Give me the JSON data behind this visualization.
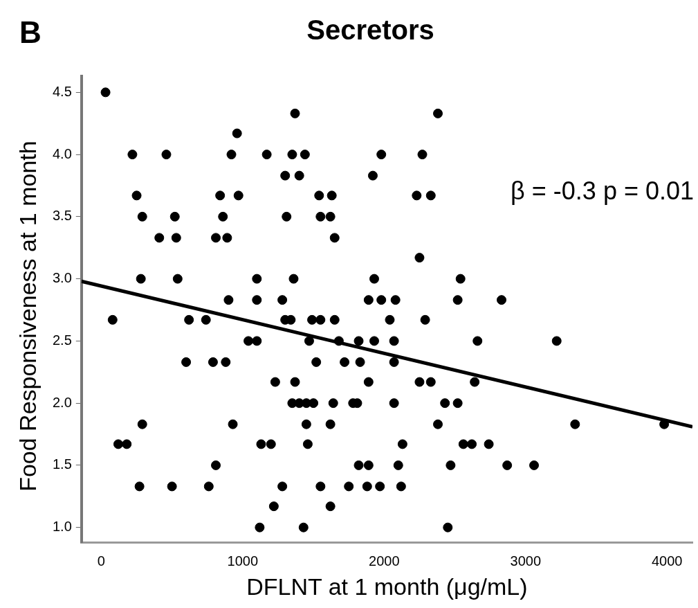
{
  "chart_data": {
    "type": "scatter",
    "title": "Secretors",
    "xlabel": "DFLNT at 1 month (μg/mL)",
    "ylabel": "Food Responsiveness at 1 month",
    "annotations": [
      "B",
      "β = -0.3 p = 0.01"
    ],
    "xlim": [
      -140,
      4180
    ],
    "xticks": [
      0,
      1000,
      2000,
      3000,
      4000
    ],
    "ylim": [
      0.88,
      4.63
    ],
    "yticks": [
      {
        "value": 1,
        "label": "1.0"
      },
      1.5,
      {
        "value": 2,
        "label": "2.0"
      },
      2.5,
      {
        "value": 3,
        "label": "3.0"
      },
      3.5,
      {
        "value": 4,
        "label": "4.0"
      },
      4.5
    ],
    "grid": false,
    "legend": false,
    "series": [
      {
        "type": "scatter",
        "marker": "circle",
        "color": "#000000",
        "x": [
          30,
          1370,
          2380,
          960,
          220,
          460,
          920,
          1170,
          1350,
          1440,
          1980,
          2270,
          1300,
          1400,
          1920,
          250,
          840,
          970,
          1540,
          1630,
          2230,
          2330,
          290,
          520,
          860,
          1310,
          1550,
          1620,
          410,
          530,
          810,
          890,
          1650,
          2250,
          280,
          540,
          1100,
          1360,
          1930,
          2540,
          900,
          1100,
          1280,
          1890,
          1980,
          2080,
          2520,
          2830,
          80,
          620,
          740,
          1300,
          1340,
          1490,
          1550,
          1650,
          2040,
          2290,
          1040,
          1100,
          1470,
          1680,
          1820,
          1930,
          2070,
          2660,
          3220,
          600,
          790,
          880,
          1520,
          1720,
          1830,
          2070,
          1230,
          1370,
          1890,
          2250,
          2330,
          2640,
          1350,
          1400,
          1450,
          1500,
          1640,
          1780,
          1810,
          2070,
          2430,
          2520,
          290,
          930,
          1450,
          1620,
          2380,
          3350,
          3980,
          120,
          180,
          1130,
          1200,
          1460,
          2130,
          2560,
          2620,
          2740,
          810,
          1820,
          1890,
          2100,
          2470,
          2870,
          3060,
          270,
          500,
          760,
          1280,
          1550,
          1750,
          1880,
          1970,
          2120,
          1220,
          1620,
          1120,
          1430,
          2450
        ],
        "values": [
          4.5,
          4.33,
          4.33,
          4.17,
          4.0,
          4.0,
          4.0,
          4.0,
          4.0,
          4.0,
          4.0,
          4.0,
          3.83,
          3.83,
          3.83,
          3.67,
          3.67,
          3.67,
          3.67,
          3.67,
          3.67,
          3.67,
          3.5,
          3.5,
          3.5,
          3.5,
          3.5,
          3.5,
          3.33,
          3.33,
          3.33,
          3.33,
          3.33,
          3.17,
          3.0,
          3.0,
          3.0,
          3.0,
          3.0,
          3.0,
          2.83,
          2.83,
          2.83,
          2.83,
          2.83,
          2.83,
          2.83,
          2.83,
          2.67,
          2.67,
          2.67,
          2.67,
          2.67,
          2.67,
          2.67,
          2.67,
          2.67,
          2.67,
          2.5,
          2.5,
          2.5,
          2.5,
          2.5,
          2.5,
          2.5,
          2.5,
          2.5,
          2.33,
          2.33,
          2.33,
          2.33,
          2.33,
          2.33,
          2.33,
          2.17,
          2.17,
          2.17,
          2.17,
          2.17,
          2.17,
          2.0,
          2.0,
          2.0,
          2.0,
          2.0,
          2.0,
          2.0,
          2.0,
          2.0,
          2.0,
          1.83,
          1.83,
          1.83,
          1.83,
          1.83,
          1.83,
          1.83,
          1.67,
          1.67,
          1.67,
          1.67,
          1.67,
          1.67,
          1.67,
          1.67,
          1.67,
          1.5,
          1.5,
          1.5,
          1.5,
          1.5,
          1.5,
          1.5,
          1.33,
          1.33,
          1.33,
          1.33,
          1.33,
          1.33,
          1.33,
          1.33,
          1.33,
          1.17,
          1.17,
          1.0,
          1.0,
          1.0
        ]
      },
      {
        "type": "line",
        "color": "#000000",
        "x": [
          -140,
          4180
        ],
        "values": [
          2.98,
          1.81
        ]
      }
    ]
  }
}
